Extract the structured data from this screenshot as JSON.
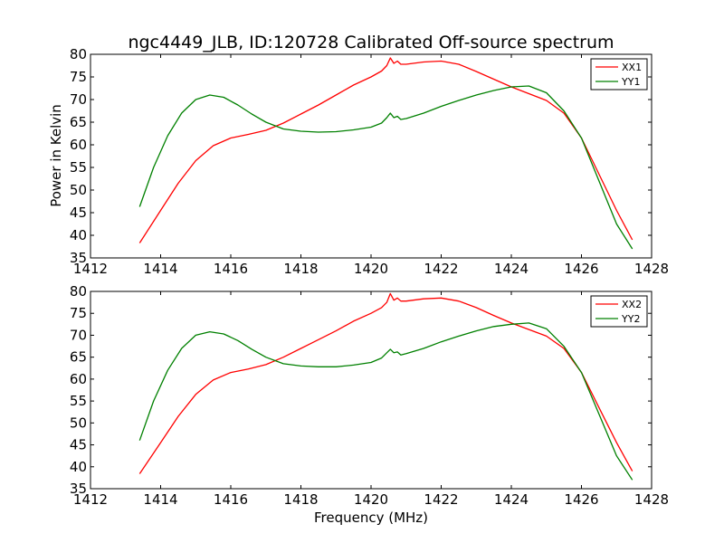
{
  "chart_data": [
    {
      "type": "line",
      "title": "ngc4449_JLB, ID:120728 Calibrated Off-source spectrum",
      "xlabel": "",
      "ylabel": "Power in Kelvin",
      "xlim": [
        1412,
        1428
      ],
      "ylim": [
        35,
        80
      ],
      "xticks": [
        "1412",
        "1414",
        "1416",
        "1418",
        "1420",
        "1422",
        "1424",
        "1426",
        "1428"
      ],
      "yticks": [
        "35",
        "40",
        "45",
        "50",
        "55",
        "60",
        "65",
        "70",
        "75",
        "80"
      ],
      "legend_position": "top-right",
      "grid": false,
      "series": [
        {
          "name": "XX1",
          "color": "#ff0000",
          "x": [
            1413.4,
            1414.0,
            1414.5,
            1415.0,
            1415.5,
            1416.0,
            1416.5,
            1417.0,
            1417.5,
            1418.0,
            1418.5,
            1419.0,
            1419.5,
            1420.0,
            1420.3,
            1420.45,
            1420.55,
            1420.65,
            1420.75,
            1420.85,
            1421.0,
            1421.5,
            1422.0,
            1422.5,
            1423.0,
            1423.5,
            1424.0,
            1424.5,
            1425.0,
            1425.5,
            1426.0,
            1426.5,
            1427.0,
            1427.45
          ],
          "y": [
            38.3,
            45.5,
            51.5,
            56.5,
            59.8,
            61.5,
            62.3,
            63.2,
            64.8,
            66.8,
            68.8,
            71.0,
            73.2,
            75.0,
            76.3,
            77.5,
            79.2,
            78.0,
            78.5,
            77.8,
            77.8,
            78.3,
            78.5,
            77.8,
            76.2,
            74.5,
            72.8,
            71.3,
            69.8,
            67.0,
            61.5,
            53.5,
            45.5,
            39.0
          ]
        },
        {
          "name": "YY1",
          "color": "#008000",
          "x": [
            1413.4,
            1413.8,
            1414.2,
            1414.6,
            1415.0,
            1415.4,
            1415.8,
            1416.2,
            1416.6,
            1417.0,
            1417.5,
            1418.0,
            1418.5,
            1419.0,
            1419.5,
            1420.0,
            1420.3,
            1420.45,
            1420.55,
            1420.65,
            1420.75,
            1420.85,
            1421.0,
            1421.5,
            1422.0,
            1422.5,
            1423.0,
            1423.5,
            1424.0,
            1424.5,
            1425.0,
            1425.5,
            1426.0,
            1426.5,
            1427.0,
            1427.45
          ],
          "y": [
            46.3,
            55.0,
            62.0,
            67.0,
            70.0,
            71.0,
            70.5,
            68.8,
            66.8,
            65.0,
            63.5,
            63.0,
            62.8,
            62.9,
            63.3,
            63.9,
            64.8,
            66.0,
            67.0,
            66.0,
            66.3,
            65.6,
            65.8,
            67.0,
            68.5,
            69.8,
            71.0,
            72.0,
            72.8,
            73.0,
            71.5,
            67.5,
            61.5,
            52.0,
            42.5,
            37.0
          ]
        }
      ]
    },
    {
      "type": "line",
      "title": "",
      "xlabel": "Frequency (MHz)",
      "ylabel": "",
      "xlim": [
        1412,
        1428
      ],
      "ylim": [
        35,
        80
      ],
      "xticks": [
        "1412",
        "1414",
        "1416",
        "1418",
        "1420",
        "1422",
        "1424",
        "1426",
        "1428"
      ],
      "yticks": [
        "35",
        "40",
        "45",
        "50",
        "55",
        "60",
        "65",
        "70",
        "75",
        "80"
      ],
      "legend_position": "top-right",
      "grid": false,
      "series": [
        {
          "name": "XX2",
          "color": "#ff0000",
          "x": [
            1413.4,
            1414.0,
            1414.5,
            1415.0,
            1415.5,
            1416.0,
            1416.5,
            1417.0,
            1417.5,
            1418.0,
            1418.5,
            1419.0,
            1419.5,
            1420.0,
            1420.3,
            1420.45,
            1420.55,
            1420.65,
            1420.75,
            1420.85,
            1421.0,
            1421.5,
            1422.0,
            1422.5,
            1423.0,
            1423.5,
            1424.0,
            1424.5,
            1425.0,
            1425.5,
            1426.0,
            1426.5,
            1427.0,
            1427.45
          ],
          "y": [
            38.4,
            45.5,
            51.5,
            56.5,
            59.8,
            61.5,
            62.3,
            63.3,
            65.0,
            67.0,
            69.0,
            71.0,
            73.2,
            75.0,
            76.3,
            77.5,
            79.5,
            78.0,
            78.5,
            77.8,
            77.8,
            78.3,
            78.5,
            77.8,
            76.3,
            74.5,
            72.8,
            71.3,
            69.8,
            67.0,
            61.5,
            53.5,
            45.5,
            39.0
          ]
        },
        {
          "name": "YY2",
          "color": "#008000",
          "x": [
            1413.4,
            1413.8,
            1414.2,
            1414.6,
            1415.0,
            1415.4,
            1415.8,
            1416.2,
            1416.6,
            1417.0,
            1417.5,
            1418.0,
            1418.5,
            1419.0,
            1419.5,
            1420.0,
            1420.3,
            1420.45,
            1420.55,
            1420.65,
            1420.75,
            1420.85,
            1421.0,
            1421.5,
            1422.0,
            1422.5,
            1423.0,
            1423.5,
            1424.0,
            1424.5,
            1425.0,
            1425.5,
            1426.0,
            1426.5,
            1427.0,
            1427.45
          ],
          "y": [
            46.0,
            55.0,
            62.0,
            67.0,
            70.0,
            70.8,
            70.3,
            68.8,
            66.8,
            65.0,
            63.5,
            63.0,
            62.8,
            62.8,
            63.2,
            63.8,
            64.8,
            66.0,
            66.8,
            66.0,
            66.2,
            65.5,
            65.8,
            67.0,
            68.5,
            69.8,
            71.0,
            72.0,
            72.5,
            72.8,
            71.5,
            67.5,
            61.5,
            52.0,
            42.5,
            37.0
          ]
        }
      ]
    }
  ]
}
